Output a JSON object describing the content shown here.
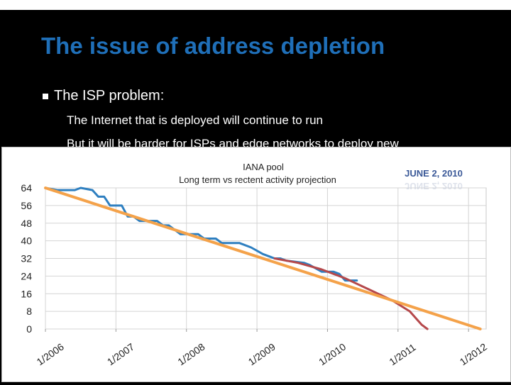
{
  "slide": {
    "title": "The issue of address depletion",
    "bullet": "The ISP problem:",
    "sub_bullets": [
      "The Internet that is deployed will continue to run",
      "But it will be harder for ISPs and edge networks to deploy new"
    ]
  },
  "colors": {
    "title": "#1f6fb8",
    "actual": "#2e7fc0",
    "long_term": "#f4a24a",
    "recent": "#b5484b",
    "stamp": "#3b5998"
  },
  "chart_data": {
    "type": "line",
    "title": "IANA pool",
    "subtitle": "Long term vs rectent activity projection",
    "annotation": "JUNE 2, 2010",
    "y_ticks": [
      0,
      8,
      16,
      24,
      32,
      40,
      48,
      56,
      64
    ],
    "ylim": [
      0,
      64
    ],
    "x_ticks": [
      "1/2006",
      "1/2007",
      "1/2008",
      "1/2009",
      "1/2010",
      "1/2011",
      "1/2012"
    ],
    "xlim": [
      "2006-01",
      "2012-04"
    ],
    "grid": true,
    "series": [
      {
        "key": "actual",
        "points": [
          [
            "2006-01",
            64
          ],
          [
            "2006-03",
            63
          ],
          [
            "2006-06",
            63
          ],
          [
            "2006-07",
            64
          ],
          [
            "2006-09",
            63
          ],
          [
            "2006-10",
            60
          ],
          [
            "2006-11",
            60
          ],
          [
            "2006-12",
            56
          ],
          [
            "2007-02",
            56
          ],
          [
            "2007-03",
            51
          ],
          [
            "2007-04",
            51
          ],
          [
            "2007-05",
            49
          ],
          [
            "2007-08",
            49
          ],
          [
            "2007-09",
            47
          ],
          [
            "2007-10",
            47
          ],
          [
            "2007-12",
            43
          ],
          [
            "2008-03",
            43
          ],
          [
            "2008-04",
            41
          ],
          [
            "2008-06",
            41
          ],
          [
            "2008-07",
            39
          ],
          [
            "2008-09",
            39
          ],
          [
            "2008-10",
            39
          ],
          [
            "2008-12",
            37
          ],
          [
            "2009-02",
            34
          ],
          [
            "2009-04",
            32
          ],
          [
            "2009-05",
            32
          ],
          [
            "2009-06",
            31
          ],
          [
            "2009-09",
            30
          ],
          [
            "2009-10",
            29
          ],
          [
            "2009-12",
            26
          ],
          [
            "2010-02",
            26
          ],
          [
            "2010-03",
            25
          ],
          [
            "2010-04",
            22
          ],
          [
            "2010-06",
            22
          ]
        ]
      },
      {
        "key": "recent",
        "points": [
          [
            "2009-04",
            32
          ],
          [
            "2009-08",
            30
          ],
          [
            "2009-12",
            27
          ],
          [
            "2010-04",
            23
          ],
          [
            "2010-08",
            18
          ],
          [
            "2010-12",
            13
          ],
          [
            "2011-03",
            8
          ],
          [
            "2011-05",
            2
          ],
          [
            "2011-06",
            0
          ]
        ]
      },
      {
        "key": "long_term",
        "points": [
          [
            "2006-01",
            64
          ],
          [
            "2012-03",
            0
          ]
        ]
      }
    ]
  }
}
